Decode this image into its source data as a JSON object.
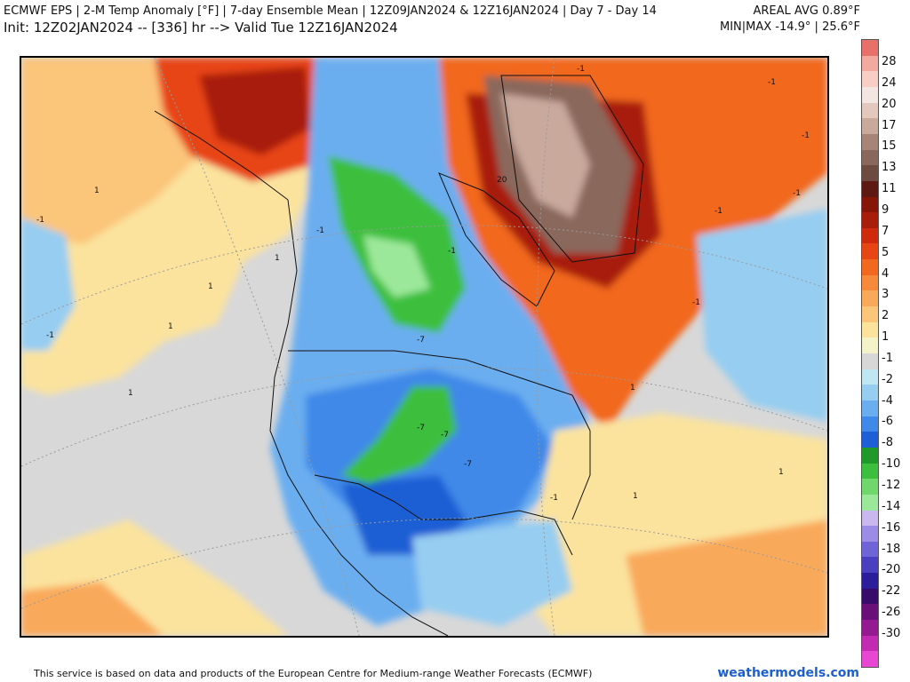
{
  "header": {
    "title_line1": "ECMWF EPS | 2-M Temp Anomaly [°F] | 7-day Ensemble Mean | 12Z09JAN2024 & 12Z16JAN2024 | Day 7 - Day 14",
    "title_line2": "Init: 12Z02JAN2024 -- [336] hr --> Valid Tue 12Z16JAN2024",
    "areal_avg": "AREAL AVG 0.89°F",
    "min_max": "MIN|MAX -14.9° | 25.6°F"
  },
  "colorbar": {
    "cells": [
      {
        "color": "#e8706a"
      },
      {
        "color": "#f2a9a0"
      },
      {
        "color": "#f7cdc6"
      },
      {
        "color": "#f3e6e2"
      },
      {
        "color": "#e2c8bd"
      },
      {
        "color": "#c9a99c"
      },
      {
        "color": "#a88478"
      },
      {
        "color": "#8a675c"
      },
      {
        "color": "#6e4b40"
      },
      {
        "color": "#5e1a12"
      },
      {
        "color": "#851608"
      },
      {
        "color": "#a81e0a"
      },
      {
        "color": "#cf2a0c"
      },
      {
        "color": "#e84514"
      },
      {
        "color": "#f2681e"
      },
      {
        "color": "#f7893a"
      },
      {
        "color": "#f9a95a"
      },
      {
        "color": "#fbc57a"
      },
      {
        "color": "#fbe39e"
      },
      {
        "color": "#f4f2c8"
      },
      {
        "color": "#d7d7d7"
      },
      {
        "color": "#c0e6f2"
      },
      {
        "color": "#96cdf1"
      },
      {
        "color": "#6aaef0"
      },
      {
        "color": "#3f89e8"
      },
      {
        "color": "#1d5fd4"
      },
      {
        "color": "#1f9a2a"
      },
      {
        "color": "#3dbf3e"
      },
      {
        "color": "#6fd76b"
      },
      {
        "color": "#9be89a"
      },
      {
        "color": "#c9b8f0"
      },
      {
        "color": "#9d8be8"
      },
      {
        "color": "#6f63d8"
      },
      {
        "color": "#4a3fc0"
      },
      {
        "color": "#2c1d9a"
      },
      {
        "color": "#3a0a6b"
      },
      {
        "color": "#6a0f7a"
      },
      {
        "color": "#951a92"
      },
      {
        "color": "#c22ab3"
      },
      {
        "color": "#e847d4"
      }
    ],
    "labels": [
      "28",
      "24",
      "20",
      "17",
      "15",
      "13",
      "11",
      "9",
      "7",
      "5",
      "4",
      "3",
      "2",
      "1",
      "-1",
      "-2",
      "-4",
      "-6",
      "-8",
      "-10",
      "-12",
      "-14",
      "-16",
      "-18",
      "-20",
      "-22",
      "-26",
      "-30"
    ]
  },
  "map": {
    "contour_labels": [
      {
        "text": "-1"
      },
      {
        "text": "-1"
      },
      {
        "text": "-1"
      },
      {
        "text": "-1"
      },
      {
        "text": "-1"
      },
      {
        "text": "-1"
      },
      {
        "text": "-1"
      },
      {
        "text": "-1"
      },
      {
        "text": "1"
      },
      {
        "text": "1"
      },
      {
        "text": "1"
      },
      {
        "text": "1"
      },
      {
        "text": "1"
      },
      {
        "text": "1"
      },
      {
        "text": "1"
      },
      {
        "text": "20"
      },
      {
        "text": "-7"
      },
      {
        "text": "-7"
      },
      {
        "text": "-7"
      },
      {
        "text": "-7"
      },
      {
        "text": "-1"
      },
      {
        "text": "-1"
      },
      {
        "text": "-1"
      },
      {
        "text": "1"
      }
    ]
  },
  "footer": {
    "disclaimer": "This service is based on data and products of the European Centre for Medium-range Weather Forecasts (ECMWF)",
    "brand": "weathermodels.com"
  }
}
